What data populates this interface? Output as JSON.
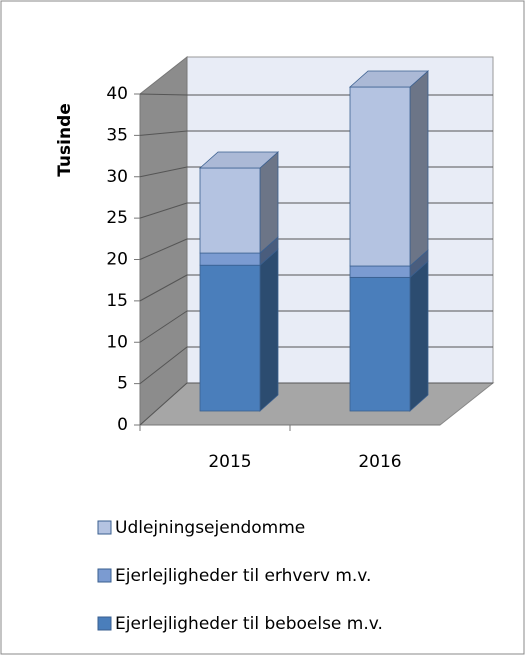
{
  "chart_data": {
    "type": "bar3d_stacked",
    "y_label": "Tusinde",
    "categories": [
      "2015",
      "2016"
    ],
    "series": [
      {
        "name": "Ejerlejligheder til beboelse m.v.",
        "color": "#4a7ebb",
        "values": [
          18,
          16.5
        ]
      },
      {
        "name": "Ejerlejligheder til erhverv m.v.",
        "color": "#7b9bd1",
        "values": [
          1.5,
          1.4
        ]
      },
      {
        "name": "Udlejningsejendomme",
        "color": "#b4c3e1",
        "values": [
          10.5,
          22.1
        ]
      }
    ],
    "ylim": [
      0,
      40
    ],
    "yticks": [
      0,
      5,
      10,
      15,
      20,
      25,
      30,
      35,
      40
    ],
    "grid": true
  }
}
